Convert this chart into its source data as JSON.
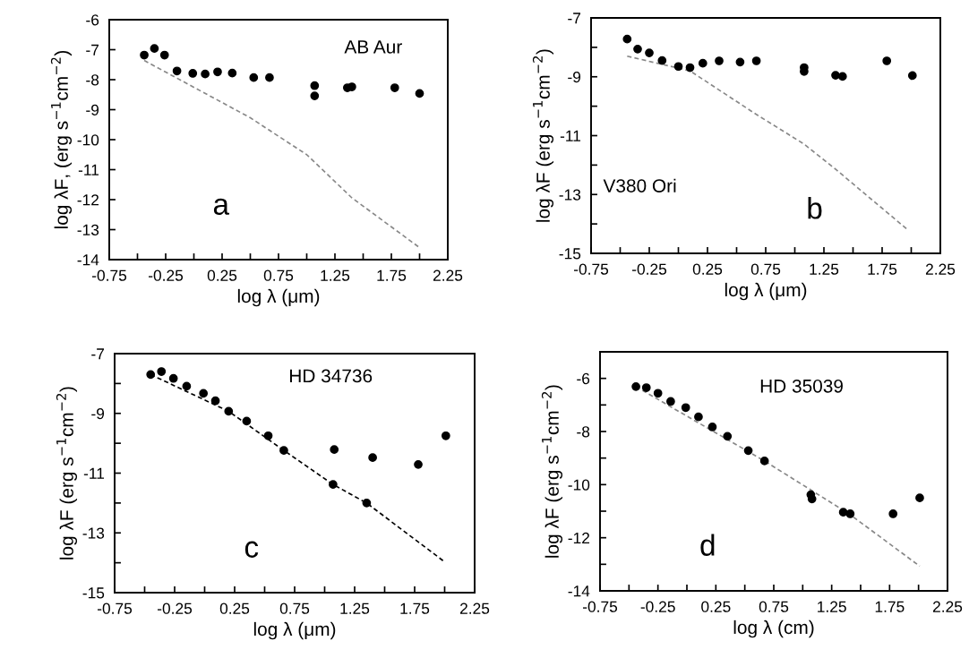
{
  "chart_data": [
    {
      "type": "scatter",
      "xlabel": "log λ (μm)",
      "ylabel": "log λF, (erg s$^{−1}$cm$^{−2}$)",
      "annotations": [
        "AB Aur",
        "a"
      ],
      "xlim": [
        -0.75,
        2.25
      ],
      "ylim": [
        -14,
        -6
      ],
      "xticks": [
        -0.75,
        {
          "value": -0.5,
          "label": null
        },
        -0.25,
        {
          "value": 0,
          "label": null
        },
        0.25,
        {
          "value": 0.5,
          "label": null
        },
        0.75,
        {
          "value": 1,
          "label": null
        },
        1.25,
        {
          "value": 1.5,
          "label": null
        },
        1.75,
        {
          "value": 2,
          "label": null
        },
        2.25
      ],
      "yticks": [
        -6,
        -7,
        -8,
        -9,
        -10,
        -11,
        -12,
        -13,
        -14
      ],
      "grid": false,
      "marker": "circle",
      "series": [
        {
          "color": "#000000",
          "x": [
            -0.44,
            -0.35,
            -0.26,
            -0.15,
            -0.01,
            0.1,
            0.21,
            0.34,
            0.53,
            0.67,
            1.07,
            1.07,
            1.36,
            1.4,
            1.78,
            2.0
          ],
          "values": [
            -7.18,
            -6.96,
            -7.18,
            -7.71,
            -7.79,
            -7.81,
            -7.74,
            -7.78,
            -7.93,
            -7.93,
            -8.2,
            -8.54,
            -8.27,
            -8.24,
            -8.27,
            -8.46
          ]
        },
        {
          "type": "line",
          "color": "#888888",
          "line_style": "dashed",
          "marker": "none",
          "x": [
            -0.44,
            0.5,
            1.0,
            1.4,
            2.0
          ],
          "values": [
            -7.36,
            -9.27,
            -10.5,
            -11.94,
            -13.6
          ]
        }
      ]
    },
    {
      "type": "scatter",
      "xlabel": "log λ (μm)",
      "ylabel": "log λF (erg s$^{−1}$cm$^{−2}$)",
      "annotations": [
        "V380 Ori",
        "b"
      ],
      "xlim": [
        -0.75,
        2.25
      ],
      "ylim": [
        -15,
        -7
      ],
      "xticks": [
        -0.75,
        {
          "value": -0.5,
          "label": null
        },
        -0.25,
        {
          "value": 0,
          "label": null
        },
        0.25,
        {
          "value": 0.5,
          "label": null
        },
        0.75,
        {
          "value": 1,
          "label": null
        },
        1.25,
        {
          "value": 1.5,
          "label": null
        },
        1.75,
        {
          "value": 2,
          "label": null
        },
        2.25
      ],
      "yticks": [
        -7,
        {
          "value": -8,
          "label": null
        },
        -9,
        {
          "value": -10,
          "label": null
        },
        -11,
        {
          "value": -12,
          "label": null
        },
        -13,
        {
          "value": -14,
          "label": null
        },
        -15
      ],
      "grid": false,
      "marker": "circle",
      "series": [
        {
          "color": "#000000",
          "x": [
            -0.44,
            -0.35,
            -0.25,
            -0.14,
            0.0,
            0.1,
            0.21,
            0.35,
            0.53,
            0.67,
            1.08,
            1.08,
            1.35,
            1.41,
            1.79,
            2.01
          ],
          "values": [
            -7.72,
            -8.06,
            -8.19,
            -8.45,
            -8.65,
            -8.69,
            -8.54,
            -8.46,
            -8.5,
            -8.46,
            -8.69,
            -8.82,
            -8.95,
            -8.99,
            -8.46,
            -8.96
          ]
        },
        {
          "type": "line",
          "color": "#888888",
          "line_style": "dashed",
          "marker": "none",
          "x": [
            -0.44,
            0.1,
            0.65,
            1.08,
            1.35,
            1.97
          ],
          "values": [
            -8.3,
            -8.8,
            -10.23,
            -11.29,
            -12.14,
            -14.2
          ]
        }
      ]
    },
    {
      "type": "scatter",
      "xlabel": "log λ (μm)",
      "ylabel": "log λF (erg s$^{−1}$cm$^{−2}$)",
      "annotations": [
        "HD 34736",
        "c"
      ],
      "xlim": [
        -0.75,
        2.25
      ],
      "ylim": [
        -15,
        -7
      ],
      "xticks": [
        -0.75,
        {
          "value": -0.5,
          "label": null
        },
        -0.25,
        {
          "value": 0,
          "label": null
        },
        0.25,
        {
          "value": 0.5,
          "label": null
        },
        0.75,
        {
          "value": 1,
          "label": null
        },
        1.25,
        {
          "value": 1.5,
          "label": null
        },
        1.75,
        {
          "value": 2,
          "label": null
        },
        2.25
      ],
      "yticks": [
        -7,
        {
          "value": -8,
          "label": null
        },
        -9,
        {
          "value": -10,
          "label": null
        },
        -11,
        {
          "value": -12,
          "label": null
        },
        -13,
        {
          "value": -14,
          "label": null
        },
        -15
      ],
      "grid": false,
      "marker": "circle",
      "series": [
        {
          "color": "#000000",
          "x": [
            -0.45,
            -0.36,
            -0.26,
            -0.15,
            -0.01,
            0.09,
            0.2,
            0.35,
            0.53,
            0.66,
            1.08,
            1.07,
            1.4,
            1.35,
            1.78,
            2.01
          ],
          "values": [
            -7.7,
            -7.6,
            -7.83,
            -8.09,
            -8.33,
            -8.58,
            -8.93,
            -9.26,
            -9.75,
            -10.24,
            -10.21,
            -11.38,
            -10.48,
            -12.0,
            -10.71,
            -9.75
          ]
        },
        {
          "type": "line",
          "color": "#000000",
          "line_style": "dashed",
          "marker": "none",
          "x": [
            -0.45,
            0.2,
            0.66,
            1.07,
            1.35,
            1.99
          ],
          "values": [
            -7.7,
            -8.93,
            -10.24,
            -11.38,
            -12.0,
            -13.94
          ]
        }
      ]
    },
    {
      "type": "scatter",
      "xlabel": "log λ (cm)",
      "ylabel": "log λF (erg s$^{−1}$cm$^{−2}$)",
      "annotations": [
        "HD 35039",
        "d"
      ],
      "xlim": [
        -0.75,
        2.25
      ],
      "ylim": [
        -14,
        -5
      ],
      "xticks": [
        -0.75,
        {
          "value": -0.5,
          "label": null
        },
        -0.25,
        {
          "value": 0,
          "label": null
        },
        0.25,
        {
          "value": 0.5,
          "label": null
        },
        0.75,
        {
          "value": 1,
          "label": null
        },
        1.25,
        {
          "value": 1.5,
          "label": null
        },
        1.75,
        {
          "value": 2,
          "label": null
        },
        2.25
      ],
      "yticks": [
        {
          "value": -5,
          "label": null
        },
        -6,
        {
          "value": -7,
          "label": null
        },
        -8,
        {
          "value": -9,
          "label": null
        },
        -10,
        {
          "value": -11,
          "label": null
        },
        -12,
        {
          "value": -13,
          "label": null
        },
        -14
      ],
      "grid": false,
      "marker": "circle",
      "series": [
        {
          "color": "#000000",
          "x": [
            -0.44,
            -0.35,
            -0.25,
            -0.14,
            -0.01,
            0.1,
            0.22,
            0.35,
            0.53,
            0.67,
            1.07,
            1.08,
            1.35,
            1.41,
            1.78,
            2.01
          ],
          "values": [
            -6.31,
            -6.35,
            -6.56,
            -6.87,
            -7.1,
            -7.45,
            -7.83,
            -8.18,
            -8.72,
            -9.11,
            -10.38,
            -10.54,
            -11.04,
            -11.1,
            -11.1,
            -10.5
          ]
        },
        {
          "type": "line",
          "color": "#888888",
          "line_style": "dashed",
          "marker": "none",
          "x": [
            -0.44,
            0.67,
            1.4,
            2.01
          ],
          "values": [
            -6.31,
            -9.11,
            -11.1,
            -13.07
          ]
        }
      ]
    }
  ]
}
